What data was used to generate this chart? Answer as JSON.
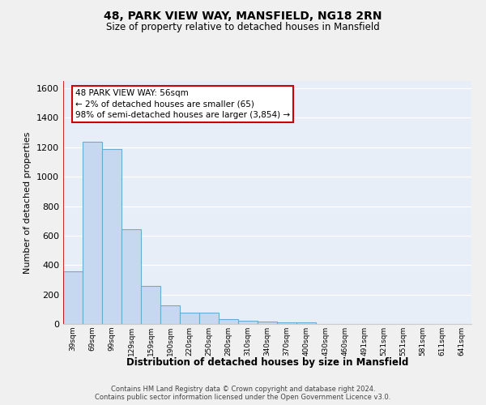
{
  "title1": "48, PARK VIEW WAY, MANSFIELD, NG18 2RN",
  "title2": "Size of property relative to detached houses in Mansfield",
  "xlabel": "Distribution of detached houses by size in Mansfield",
  "ylabel": "Number of detached properties",
  "categories": [
    "39sqm",
    "69sqm",
    "99sqm",
    "129sqm",
    "159sqm",
    "190sqm",
    "220sqm",
    "250sqm",
    "280sqm",
    "310sqm",
    "340sqm",
    "370sqm",
    "400sqm",
    "430sqm",
    "460sqm",
    "491sqm",
    "521sqm",
    "551sqm",
    "581sqm",
    "611sqm",
    "641sqm"
  ],
  "values": [
    355,
    1240,
    1190,
    645,
    260,
    125,
    75,
    75,
    35,
    22,
    15,
    10,
    10,
    0,
    0,
    0,
    0,
    0,
    0,
    0,
    0
  ],
  "bar_color": "#c5d8f0",
  "bar_edge_color": "#6aabd2",
  "background_color": "#e8eef8",
  "grid_color": "#ffffff",
  "red_line_x": -0.48,
  "annotation_text": "48 PARK VIEW WAY: 56sqm\n← 2% of detached houses are smaller (65)\n98% of semi-detached houses are larger (3,854) →",
  "annotation_box_color": "#ffffff",
  "annotation_border_color": "#cc0000",
  "ylim": [
    0,
    1650
  ],
  "yticks": [
    0,
    200,
    400,
    600,
    800,
    1000,
    1200,
    1400,
    1600
  ],
  "footer1": "Contains HM Land Registry data © Crown copyright and database right 2024.",
  "footer2": "Contains public sector information licensed under the Open Government Licence v3.0."
}
